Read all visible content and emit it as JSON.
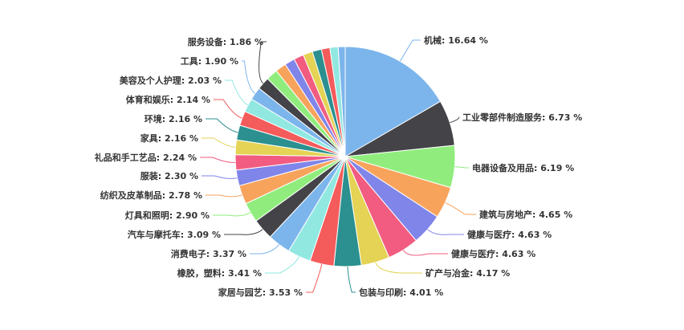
{
  "chart_data": {
    "type": "pie",
    "title": "",
    "unit": "%",
    "palette": [
      "#7cb5ec",
      "#434348",
      "#90ed7d",
      "#f7a35c",
      "#8085e9",
      "#f15c80",
      "#e4d354",
      "#2b908f",
      "#f45b5b",
      "#91e8e1"
    ],
    "slices": [
      {
        "name": "机械",
        "value": 16.64,
        "label": "机械: 16.64 %"
      },
      {
        "name": "工业零部件制造服务",
        "value": 6.73,
        "label": "工业零部件制造服务: 6.73 %"
      },
      {
        "name": "电器设备及用品",
        "value": 6.19,
        "label": "电器设备及用品: 6.19 %"
      },
      {
        "name": "建筑与房地产",
        "value": 4.65,
        "label": "建筑与房地产: 4.65 %"
      },
      {
        "name": "健康与医疗",
        "value": 4.63,
        "label": "健康与医疗: 4.63 %"
      },
      {
        "name": "健康与医疗",
        "value": 4.63,
        "label": "健康与医疗: 4.63 %"
      },
      {
        "name": "矿产与冶金",
        "value": 4.17,
        "label": "矿产与冶金: 4.17 %"
      },
      {
        "name": "包装与印刷",
        "value": 4.01,
        "label": "包装与印刷: 4.01 %"
      },
      {
        "name": "家居与园艺",
        "value": 3.53,
        "label": "家居与园艺: 3.53 %"
      },
      {
        "name": "橡胶，塑料",
        "value": 3.41,
        "label": "橡胶，塑料: 3.41 %"
      },
      {
        "name": "消费电子",
        "value": 3.37,
        "label": "消费电子: 3.37 %"
      },
      {
        "name": "汽车与摩托车",
        "value": 3.09,
        "label": "汽车与摩托车: 3.09 %"
      },
      {
        "name": "灯具和照明",
        "value": 2.9,
        "label": "灯具和照明: 2.90 %"
      },
      {
        "name": "纺织及皮革制品",
        "value": 2.78,
        "label": "纺织及皮革制品: 2.78 %"
      },
      {
        "name": "服装",
        "value": 2.3,
        "label": "服装: 2.30 %"
      },
      {
        "name": "礼品和手工艺品",
        "value": 2.24,
        "label": "礼品和手工艺品: 2.24 %"
      },
      {
        "name": "家具",
        "value": 2.16,
        "label": "家具: 2.16 %"
      },
      {
        "name": "环境",
        "value": 2.16,
        "label": "环境: 2.16 %"
      },
      {
        "name": "体育和娱乐",
        "value": 2.14,
        "label": "体育和娱乐: 2.14 %"
      },
      {
        "name": "美容及个人护理",
        "value": 2.03,
        "label": "美容及个人护理: 2.03 %"
      },
      {
        "name": "工具",
        "value": 1.9,
        "label": "工具: 1.90 %"
      },
      {
        "name": "服务设备",
        "value": 1.86,
        "label": "服务设备: 1.86 %"
      },
      {
        "value": 1.7
      },
      {
        "value": 1.6
      },
      {
        "value": 1.5
      },
      {
        "value": 1.45
      },
      {
        "value": 1.4
      },
      {
        "value": 1.35
      },
      {
        "value": 1.25
      },
      {
        "value": 1.2
      },
      {
        "value": 1.03
      }
    ]
  }
}
